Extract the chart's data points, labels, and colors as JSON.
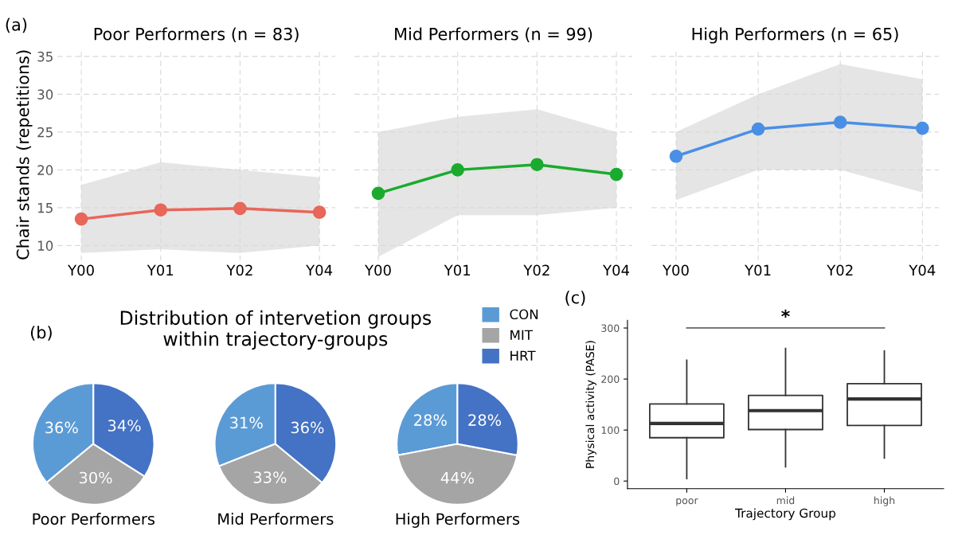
{
  "chart_data": [
    {
      "type": "line",
      "title": "Poor Performers (n = 83)",
      "ylabel": "Chair stands (repetitions)",
      "categories": [
        "Y00",
        "Y01",
        "Y02",
        "Y04"
      ],
      "ylim": [
        8,
        36
      ],
      "yticks": [
        10,
        15,
        20,
        25,
        30,
        35
      ],
      "grid": true,
      "marker": "circle",
      "annotations": [
        "(a)"
      ],
      "series": [
        {
          "color": "#e8665a",
          "values": [
            13.5,
            14.7,
            14.9,
            14.4
          ],
          "lower": [
            9,
            9.5,
            9,
            10
          ],
          "upper": [
            18,
            21,
            20,
            19
          ]
        }
      ]
    },
    {
      "type": "line",
      "title": "Mid Performers (n = 99)",
      "categories": [
        "Y00",
        "Y01",
        "Y02",
        "Y04"
      ],
      "ylim": [
        8,
        36
      ],
      "yticks": [
        10,
        15,
        20,
        25,
        30,
        35
      ],
      "grid": true,
      "marker": "circle",
      "tick_labels": "x",
      "series": [
        {
          "color": "#1aab2e",
          "values": [
            16.9,
            20.0,
            20.7,
            19.4
          ],
          "lower": [
            8.5,
            14,
            14,
            15
          ],
          "upper": [
            25,
            27,
            28,
            25
          ]
        }
      ]
    },
    {
      "type": "line",
      "title": "High Performers (n = 65)",
      "categories": [
        "Y00",
        "Y01",
        "Y02",
        "Y04"
      ],
      "ylim": [
        8,
        36
      ],
      "yticks": [
        10,
        15,
        20,
        25,
        30,
        35
      ],
      "grid": true,
      "marker": "circle",
      "tick_labels": "x",
      "series": [
        {
          "color": "#4a8fe6",
          "values": [
            21.8,
            25.4,
            26.3,
            25.5
          ],
          "lower": [
            16,
            20,
            20,
            17
          ],
          "upper": [
            25,
            30,
            34,
            32
          ]
        }
      ]
    },
    {
      "type": "pie",
      "xlabel": "Poor Performers",
      "annotations": [
        "(b)"
      ],
      "categories": [
        "CON",
        "MIT",
        "HRT"
      ],
      "values": [
        36,
        30,
        34
      ],
      "colors": [
        "#5b9bd5",
        "#a5a5a5",
        "#4472c4"
      ],
      "value_labels": [
        "36%",
        "30%",
        "34%"
      ],
      "legend": "top right"
    },
    {
      "type": "pie",
      "title": "Distribution of intervetion groups\nwithin trajectory-groups",
      "xlabel": "Mid Performers",
      "categories": [
        null,
        null,
        null
      ],
      "values": [
        31,
        33,
        36
      ],
      "colors": [
        "#5b9bd5",
        "#a5a5a5",
        "#4472c4"
      ],
      "value_labels": [
        "31%",
        "33%",
        "36%"
      ]
    },
    {
      "type": "pie",
      "xlabel": "High Performers",
      "categories": [
        null,
        null,
        null
      ],
      "values": [
        28,
        44,
        28
      ],
      "colors": [
        "#5b9bd5",
        "#a5a5a5",
        "#4472c4"
      ],
      "value_labels": [
        "28%",
        "44%",
        "28%"
      ]
    },
    {
      "type": "box",
      "xlabel": "Trajectory Group",
      "ylabel": "Physical activity (PASE)",
      "categories": [
        "poor",
        "mid",
        "high"
      ],
      "ylim": [
        -15,
        315
      ],
      "yticks": [
        0,
        100,
        200,
        300
      ],
      "annotations": [
        "(c)",
        "*"
      ],
      "boxes": [
        {
          "low": 5,
          "q1": 85,
          "median": 113,
          "q3": 151,
          "high": 237
        },
        {
          "low": 28,
          "q1": 101,
          "median": 138,
          "q3": 168,
          "high": 260
        },
        {
          "low": 45,
          "q1": 109,
          "median": 161,
          "q3": 191,
          "high": 255
        }
      ]
    }
  ]
}
